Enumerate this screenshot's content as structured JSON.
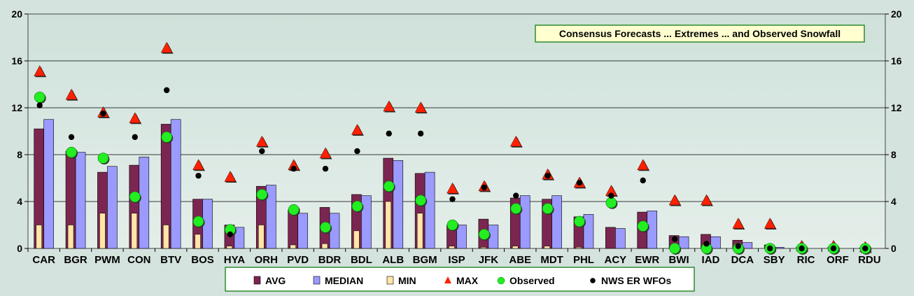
{
  "chart_data": {
    "type": "bar",
    "title": "Consensus Forecasts ... Extremes ... and Observed Snowfall",
    "categories": [
      "CAR",
      "BGR",
      "PWM",
      "CON",
      "BTV",
      "BOS",
      "HYA",
      "ORH",
      "PVD",
      "BDR",
      "BDL",
      "ALB",
      "BGM",
      "ISP",
      "JFK",
      "ABE",
      "MDT",
      "PHL",
      "ACY",
      "EWR",
      "BWI",
      "IAD",
      "DCA",
      "SBY",
      "RIC",
      "ORF",
      "RDU"
    ],
    "ylim": [
      0,
      20
    ],
    "yticks": [
      0,
      4,
      8,
      12,
      16,
      20
    ],
    "ytick_labels": [
      "0",
      "4",
      "8",
      "12",
      "16",
      "20"
    ],
    "grid": true,
    "legend_position": "bottom",
    "series": [
      {
        "name": "AVG",
        "kind": "bar",
        "color": "#7b2650",
        "values": [
          10.2,
          8.3,
          6.5,
          7.1,
          10.6,
          4.2,
          2.0,
          5.3,
          3.3,
          3.5,
          4.6,
          7.7,
          6.4,
          2.0,
          2.5,
          4.3,
          4.2,
          2.7,
          1.8,
          3.1,
          1.1,
          1.2,
          0.7,
          0.3,
          0.1,
          0.1,
          0.05
        ]
      },
      {
        "name": "MEDIAN",
        "kind": "bar",
        "color": "#9a9aff",
        "values": [
          11.0,
          8.2,
          7.0,
          7.8,
          11.0,
          4.2,
          1.8,
          5.4,
          3.0,
          3.0,
          4.5,
          7.5,
          6.5,
          2.0,
          2.0,
          4.5,
          4.5,
          2.9,
          1.7,
          3.2,
          1.0,
          1.0,
          0.5,
          0.1,
          0.0,
          0.0,
          0.0
        ]
      },
      {
        "name": "MIN",
        "kind": "bar",
        "color": "#ffe5a6",
        "values": [
          2.0,
          2.0,
          3.0,
          3.0,
          2.0,
          1.2,
          0.2,
          2.0,
          0.3,
          0.4,
          1.5,
          4.0,
          3.0,
          0.2,
          0.1,
          0.2,
          0.2,
          0.1,
          0.0,
          0.0,
          0.0,
          0.0,
          0.0,
          0.0,
          0.0,
          0.0,
          0.0
        ]
      },
      {
        "name": "MAX",
        "kind": "marker",
        "marker": "triangle",
        "color": "#ff2000",
        "values": [
          15.0,
          13.0,
          11.5,
          11.0,
          17.0,
          7.0,
          6.0,
          9.0,
          7.0,
          8.0,
          10.0,
          12.0,
          11.9,
          5.0,
          5.2,
          9.0,
          6.2,
          5.5,
          4.8,
          7.0,
          4.0,
          4.0,
          2.0,
          2.0,
          0.1,
          0.1,
          0.0
        ]
      },
      {
        "name": "Observed",
        "kind": "marker",
        "marker": "circle",
        "color": "#22ee22",
        "values": [
          12.9,
          8.2,
          7.7,
          4.4,
          9.5,
          2.3,
          1.6,
          4.6,
          3.3,
          1.8,
          3.6,
          5.3,
          4.1,
          2.0,
          1.2,
          3.4,
          3.4,
          2.3,
          3.9,
          1.9,
          0.0,
          0.0,
          0.0,
          0.0,
          0.0,
          0.0,
          0.0
        ]
      },
      {
        "name": "NWS ER WFOs",
        "kind": "marker",
        "marker": "dot",
        "color": "#000000",
        "values": [
          12.2,
          9.5,
          11.5,
          9.5,
          13.5,
          6.2,
          1.2,
          8.3,
          6.8,
          6.8,
          8.3,
          9.8,
          9.8,
          4.2,
          5.2,
          4.5,
          6.2,
          5.6,
          4.5,
          5.8,
          0.8,
          0.4,
          0.2,
          0.0,
          0.0,
          0.0,
          0.0
        ]
      }
    ],
    "colors": {
      "plot_background": "#d9e8e1",
      "plot_border": "#444444",
      "gridline": "#000000",
      "title_box_bg": "#ffffd0",
      "title_box_border": "#2e8b2e",
      "legend_bg": "#ffffff",
      "legend_border": "#2e8b2e"
    }
  }
}
